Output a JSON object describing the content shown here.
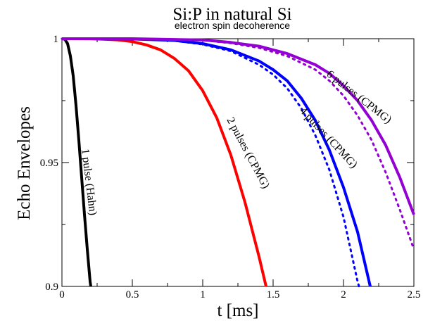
{
  "chart_data": {
    "type": "line",
    "title": "Si:P in natural Si",
    "subtitle": "electron spin decoherence",
    "xlabel": "t [ms]",
    "ylabel": "Echo Envelopes",
    "xlim": [
      0,
      2.5
    ],
    "ylim": [
      0.9,
      1.0
    ],
    "xticks": [
      "0",
      "0.5",
      "1",
      "1.5",
      "2",
      "2.5"
    ],
    "yticks": [
      "0.9",
      "0.95",
      "1"
    ],
    "grid": false,
    "legend": "none",
    "series": [
      {
        "label": "1 pulse (Hahn)",
        "color": "#000000",
        "style": "solid",
        "points": [
          [
            0,
            1.0
          ],
          [
            0.02,
            0.9998
          ],
          [
            0.04,
            0.998
          ],
          [
            0.06,
            0.993
          ],
          [
            0.08,
            0.985
          ],
          [
            0.1,
            0.973
          ],
          [
            0.12,
            0.959
          ],
          [
            0.14,
            0.944
          ],
          [
            0.16,
            0.929
          ],
          [
            0.18,
            0.915
          ],
          [
            0.2,
            0.902
          ],
          [
            0.205,
            0.9
          ]
        ]
      },
      {
        "label": "2 pulses (CPMG)",
        "color": "#ff0000",
        "style": "solid",
        "points": [
          [
            0,
            1.0
          ],
          [
            0.2,
            1.0
          ],
          [
            0.3,
            0.9998
          ],
          [
            0.4,
            0.9995
          ],
          [
            0.5,
            0.9988
          ],
          [
            0.6,
            0.9975
          ],
          [
            0.7,
            0.9955
          ],
          [
            0.8,
            0.992
          ],
          [
            0.9,
            0.987
          ],
          [
            1.0,
            0.979
          ],
          [
            1.1,
            0.968
          ],
          [
            1.2,
            0.953
          ],
          [
            1.3,
            0.934
          ],
          [
            1.4,
            0.912
          ],
          [
            1.45,
            0.9
          ]
        ]
      },
      {
        "label": "4 pulses (CPMG)",
        "color": "#0000ff",
        "style": "solid",
        "points": [
          [
            0,
            1.0
          ],
          [
            0.5,
            0.9999
          ],
          [
            0.8,
            0.9993
          ],
          [
            1.0,
            0.998
          ],
          [
            1.2,
            0.9955
          ],
          [
            1.4,
            0.991
          ],
          [
            1.5,
            0.9875
          ],
          [
            1.6,
            0.983
          ],
          [
            1.7,
            0.976
          ],
          [
            1.8,
            0.967
          ],
          [
            1.9,
            0.955
          ],
          [
            2.0,
            0.94
          ],
          [
            2.1,
            0.922
          ],
          [
            2.19,
            0.9
          ]
        ]
      },
      {
        "label": "",
        "color": "#0000ff",
        "style": "dotted",
        "points": [
          [
            0,
            1.0
          ],
          [
            0.5,
            0.9999
          ],
          [
            0.8,
            0.9992
          ],
          [
            1.0,
            0.9977
          ],
          [
            1.2,
            0.995
          ],
          [
            1.4,
            0.9895
          ],
          [
            1.5,
            0.9855
          ],
          [
            1.6,
            0.98
          ],
          [
            1.7,
            0.972
          ],
          [
            1.8,
            0.961
          ],
          [
            1.9,
            0.947
          ],
          [
            2.0,
            0.928
          ],
          [
            2.1,
            0.902
          ],
          [
            2.11,
            0.9
          ]
        ]
      },
      {
        "label": "6 pulses (CPMG)",
        "color": "#9400d3",
        "style": "solid",
        "points": [
          [
            0,
            1.0
          ],
          [
            0.5,
            1.0
          ],
          [
            1.0,
            0.9995
          ],
          [
            1.2,
            0.9985
          ],
          [
            1.4,
            0.997
          ],
          [
            1.6,
            0.994
          ],
          [
            1.8,
            0.9895
          ],
          [
            1.9,
            0.986
          ],
          [
            2.0,
            0.981
          ],
          [
            2.1,
            0.975
          ],
          [
            2.2,
            0.967
          ],
          [
            2.3,
            0.957
          ],
          [
            2.4,
            0.944
          ],
          [
            2.5,
            0.929
          ]
        ]
      },
      {
        "label": "",
        "color": "#9400d3",
        "style": "dotted",
        "points": [
          [
            0,
            1.0
          ],
          [
            0.5,
            1.0
          ],
          [
            1.0,
            0.9994
          ],
          [
            1.2,
            0.9982
          ],
          [
            1.4,
            0.9963
          ],
          [
            1.6,
            0.993
          ],
          [
            1.8,
            0.9875
          ],
          [
            1.9,
            0.983
          ],
          [
            2.0,
            0.977
          ],
          [
            2.1,
            0.969
          ],
          [
            2.2,
            0.959
          ],
          [
            2.3,
            0.946
          ],
          [
            2.4,
            0.931
          ],
          [
            2.5,
            0.915
          ]
        ]
      }
    ]
  }
}
